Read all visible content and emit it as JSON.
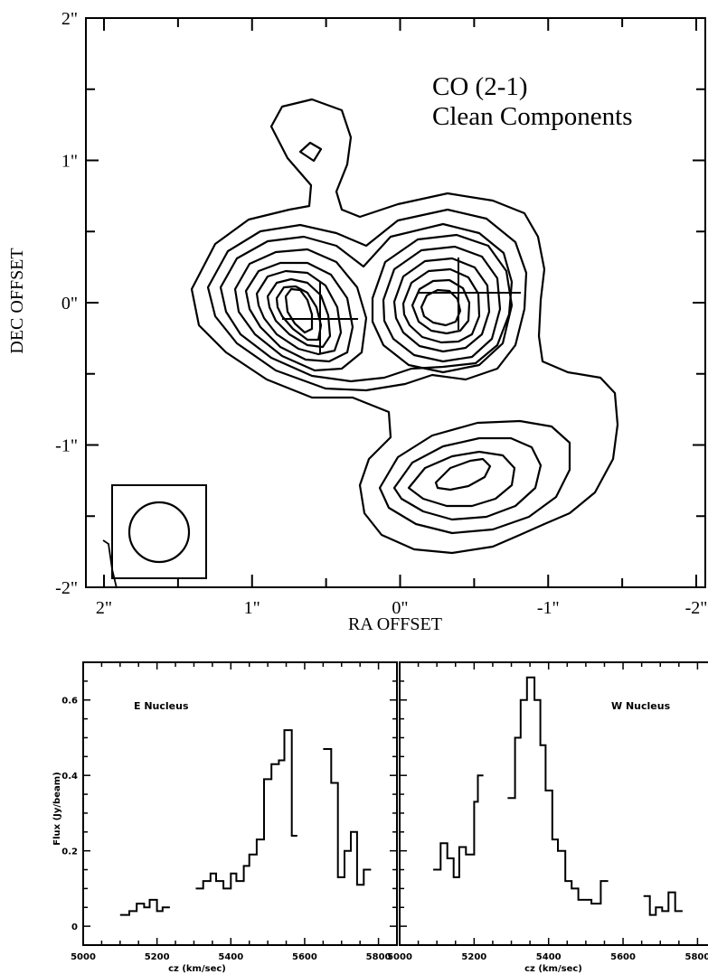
{
  "chart_data": [
    {
      "type": "contour",
      "title_line1": "CO (2-1)",
      "title_line2": "Clean Components",
      "xlabel": "RA OFFSET",
      "ylabel": "DEC OFFSET",
      "xlim": [
        2,
        -2
      ],
      "ylim": [
        -2,
        2
      ],
      "xtick_labels": [
        "2\"",
        "1\"",
        "0\"",
        "-1\"",
        "-2\""
      ],
      "xtick_values": [
        2,
        1,
        0,
        -1,
        -2
      ],
      "ytick_labels": [
        "2\"",
        "1\"",
        "0\"",
        "-1\"",
        "-2\""
      ],
      "ytick_values": [
        2,
        1,
        0,
        -1,
        -2
      ],
      "peaks": [
        {
          "name": "east",
          "ra": 0.55,
          "dec": 0.05
        },
        {
          "name": "west",
          "ra": -0.25,
          "dec": 0.05
        },
        {
          "name": "south",
          "ra": -0.45,
          "dec": -1.1
        },
        {
          "name": "north",
          "ra": 0.58,
          "dec": 1.08
        }
      ],
      "crosses": [
        {
          "ra": 0.5,
          "dec": -0.05,
          "dx": 0.25,
          "dy": 0.25
        },
        {
          "ra": -0.4,
          "dec": 0.12,
          "dx": 0.28,
          "dy": 0.25
        }
      ],
      "beam": {
        "ra": 1.6,
        "dec": -1.5,
        "radius": 0.2
      }
    },
    {
      "type": "line",
      "step": true,
      "title": "E Nucleus",
      "xlabel": "cz (km/sec)",
      "ylabel": "Flux (Jy/beam)",
      "xlim": [
        5000,
        5850
      ],
      "ylim": [
        -0.05,
        0.7
      ],
      "xtick_labels": [
        "5000",
        "5200",
        "5400",
        "5600",
        "5800"
      ],
      "xtick_values": [
        5000,
        5200,
        5400,
        5600,
        5800
      ],
      "ytick_labels": [
        "0",
        "0.2",
        "0.4",
        "0.6"
      ],
      "ytick_values": [
        0,
        0.2,
        0.4,
        0.6
      ],
      "segments": [
        [
          [
            5100,
            0.03
          ],
          [
            5125,
            0.03
          ],
          [
            5125,
            0.04
          ],
          [
            5145,
            0.04
          ],
          [
            5145,
            0.06
          ],
          [
            5165,
            0.06
          ],
          [
            5165,
            0.05
          ],
          [
            5180,
            0.05
          ],
          [
            5180,
            0.07
          ],
          [
            5200,
            0.07
          ],
          [
            5200,
            0.04
          ],
          [
            5215,
            0.04
          ],
          [
            5215,
            0.05
          ],
          [
            5235,
            0.05
          ]
        ],
        [
          [
            5305,
            0.1
          ],
          [
            5325,
            0.1
          ],
          [
            5325,
            0.12
          ],
          [
            5345,
            0.12
          ],
          [
            5345,
            0.14
          ],
          [
            5360,
            0.14
          ],
          [
            5360,
            0.12
          ],
          [
            5380,
            0.12
          ],
          [
            5380,
            0.1
          ],
          [
            5400,
            0.1
          ],
          [
            5400,
            0.14
          ],
          [
            5415,
            0.14
          ],
          [
            5415,
            0.12
          ],
          [
            5435,
            0.12
          ],
          [
            5435,
            0.16
          ],
          [
            5450,
            0.16
          ],
          [
            5450,
            0.19
          ],
          [
            5470,
            0.19
          ],
          [
            5470,
            0.23
          ],
          [
            5490,
            0.23
          ],
          [
            5490,
            0.39
          ],
          [
            5510,
            0.39
          ],
          [
            5510,
            0.43
          ],
          [
            5530,
            0.43
          ],
          [
            5530,
            0.44
          ],
          [
            5545,
            0.44
          ],
          [
            5545,
            0.52
          ],
          [
            5565,
            0.52
          ],
          [
            5565,
            0.24
          ],
          [
            5580,
            0.24
          ]
        ],
        [
          [
            5650,
            0.47
          ],
          [
            5672,
            0.47
          ],
          [
            5672,
            0.38
          ],
          [
            5690,
            0.38
          ],
          [
            5690,
            0.13
          ],
          [
            5708,
            0.13
          ],
          [
            5708,
            0.2
          ],
          [
            5725,
            0.2
          ],
          [
            5725,
            0.25
          ],
          [
            5742,
            0.25
          ],
          [
            5742,
            0.11
          ],
          [
            5760,
            0.11
          ],
          [
            5760,
            0.15
          ],
          [
            5780,
            0.15
          ]
        ]
      ]
    },
    {
      "type": "line",
      "step": true,
      "title": "W Nucleus",
      "xlabel": "cz (km/sec)",
      "ylabel": "",
      "xlim": [
        5000,
        5850
      ],
      "ylim": [
        -0.05,
        0.7
      ],
      "xtick_labels": [
        "5000",
        "5200",
        "5400",
        "5600",
        "5800"
      ],
      "xtick_values": [
        5000,
        5200,
        5400,
        5600,
        5800
      ],
      "segments": [
        [
          [
            5090,
            0.15
          ],
          [
            5110,
            0.15
          ],
          [
            5110,
            0.22
          ],
          [
            5128,
            0.22
          ],
          [
            5128,
            0.18
          ],
          [
            5145,
            0.18
          ],
          [
            5145,
            0.13
          ],
          [
            5160,
            0.13
          ],
          [
            5160,
            0.21
          ],
          [
            5178,
            0.21
          ],
          [
            5178,
            0.19
          ],
          [
            5200,
            0.19
          ],
          [
            5200,
            0.33
          ],
          [
            5210,
            0.33
          ],
          [
            5210,
            0.4
          ],
          [
            5225,
            0.4
          ]
        ],
        [
          [
            5290,
            0.34
          ],
          [
            5310,
            0.34
          ],
          [
            5310,
            0.5
          ],
          [
            5325,
            0.5
          ],
          [
            5325,
            0.6
          ],
          [
            5342,
            0.6
          ],
          [
            5342,
            0.66
          ],
          [
            5362,
            0.66
          ],
          [
            5362,
            0.6
          ],
          [
            5378,
            0.6
          ],
          [
            5378,
            0.48
          ],
          [
            5392,
            0.48
          ],
          [
            5392,
            0.36
          ],
          [
            5410,
            0.36
          ],
          [
            5410,
            0.23
          ],
          [
            5425,
            0.23
          ],
          [
            5425,
            0.2
          ],
          [
            5445,
            0.2
          ],
          [
            5445,
            0.12
          ],
          [
            5462,
            0.12
          ],
          [
            5462,
            0.1
          ],
          [
            5480,
            0.1
          ],
          [
            5480,
            0.07
          ],
          [
            5515,
            0.07
          ],
          [
            5515,
            0.06
          ],
          [
            5540,
            0.06
          ],
          [
            5540,
            0.12
          ],
          [
            5560,
            0.12
          ]
        ],
        [
          [
            5655,
            0.08
          ],
          [
            5672,
            0.08
          ],
          [
            5672,
            0.03
          ],
          [
            5688,
            0.03
          ],
          [
            5688,
            0.05
          ],
          [
            5705,
            0.05
          ],
          [
            5705,
            0.04
          ],
          [
            5722,
            0.04
          ],
          [
            5722,
            0.09
          ],
          [
            5740,
            0.09
          ],
          [
            5740,
            0.04
          ],
          [
            5760,
            0.04
          ]
        ]
      ]
    }
  ]
}
